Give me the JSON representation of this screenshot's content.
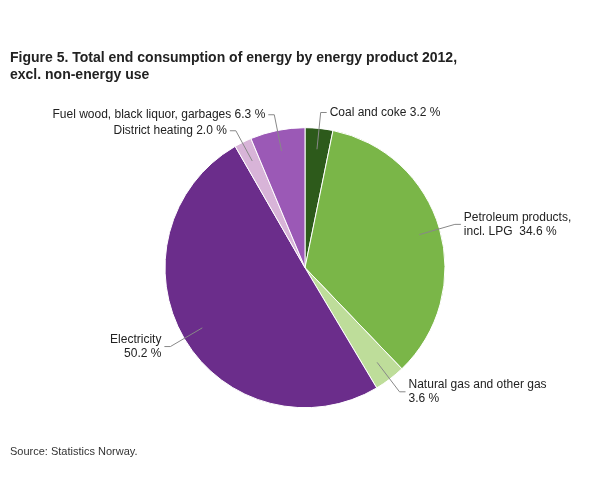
{
  "chart_data": {
    "type": "pie",
    "title": "Figure 5. Total end consumption of energy by energy product 2012,\nexcl. non-energy use",
    "annotations": [
      "Source: Statistics Norway."
    ],
    "categories": [
      "Coal and coke 3.2 %",
      "Petroleum products,\nincl. LPG  34.6 %",
      "Natural gas and other gas\n3.6 %",
      "Electricity\n50.2 %",
      "District heating 2.0 %",
      "Fuel wood, black liquor, garbages 6.3 %"
    ],
    "values": [
      3.2,
      34.6,
      3.6,
      50.2,
      2.0,
      6.3
    ],
    "colors": [
      "#2d5a1b",
      "#7ab648",
      "#bedd9a",
      "#6b2d8b",
      "#d8b4d8",
      "#9b59b6"
    ]
  }
}
